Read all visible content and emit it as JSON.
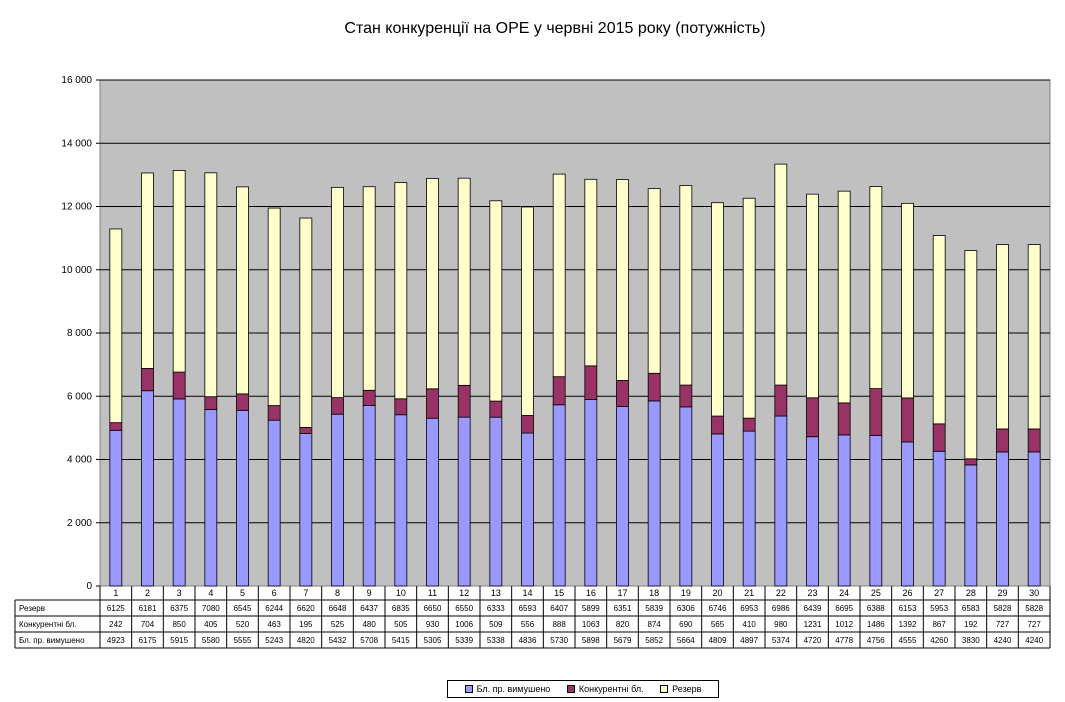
{
  "chart_data": {
    "type": "bar",
    "stacked": true,
    "title": "Стан конкуренції на ОРЕ  у червні 2015 року (потужність)",
    "categories": [
      "1",
      "2",
      "3",
      "4",
      "5",
      "6",
      "7",
      "8",
      "9",
      "10",
      "11",
      "12",
      "13",
      "14",
      "15",
      "16",
      "17",
      "18",
      "19",
      "20",
      "21",
      "22",
      "23",
      "24",
      "25",
      "26",
      "27",
      "28",
      "29",
      "30"
    ],
    "ylim": [
      0,
      16000
    ],
    "yticks": [
      0,
      2000,
      4000,
      6000,
      8000,
      10000,
      12000,
      14000,
      16000
    ],
    "ytick_labels": [
      "0",
      "2 000",
      "4 000",
      "6 000",
      "8 000",
      "10 000",
      "12 000",
      "14 000",
      "16 000"
    ],
    "grid": true,
    "legend_position": "bottom",
    "data_table": true,
    "series": [
      {
        "name": "Бл. пр. вимушено",
        "color": "#9999ff",
        "values": [
          4923,
          6175,
          5915,
          5580,
          5555,
          5243,
          4820,
          5432,
          5708,
          5415,
          5305,
          5339,
          5338,
          4836,
          5730,
          5898,
          5679,
          5852,
          5664,
          4809,
          4897,
          5374,
          4720,
          4778,
          4756,
          4555,
          4260,
          3830,
          4240,
          4240
        ]
      },
      {
        "name": "Конкурентні бл.",
        "color": "#993366",
        "values": [
          242,
          704,
          850,
          405,
          520,
          463,
          195,
          525,
          480,
          505,
          930,
          1006,
          509,
          556,
          888,
          1063,
          820,
          874,
          690,
          565,
          410,
          980,
          1231,
          1012,
          1486,
          1392,
          867,
          192,
          727,
          727
        ]
      },
      {
        "name": "Резерв",
        "color": "#ffffcc",
        "values": [
          6125,
          6181,
          6375,
          7080,
          6545,
          6244,
          6620,
          6648,
          6437,
          6835,
          6650,
          6550,
          6333,
          6593,
          6407,
          5899,
          6351,
          5839,
          6306,
          6746,
          6953,
          6986,
          6439,
          6695,
          6388,
          6153,
          5953,
          6583,
          5828,
          5828
        ]
      }
    ],
    "table_rows": [
      "Резерв",
      "Конкурентні бл.",
      "Бл. пр. вимушено"
    ]
  },
  "colors": {
    "plot_background": "#c0c0c0",
    "gridline": "#000000"
  }
}
